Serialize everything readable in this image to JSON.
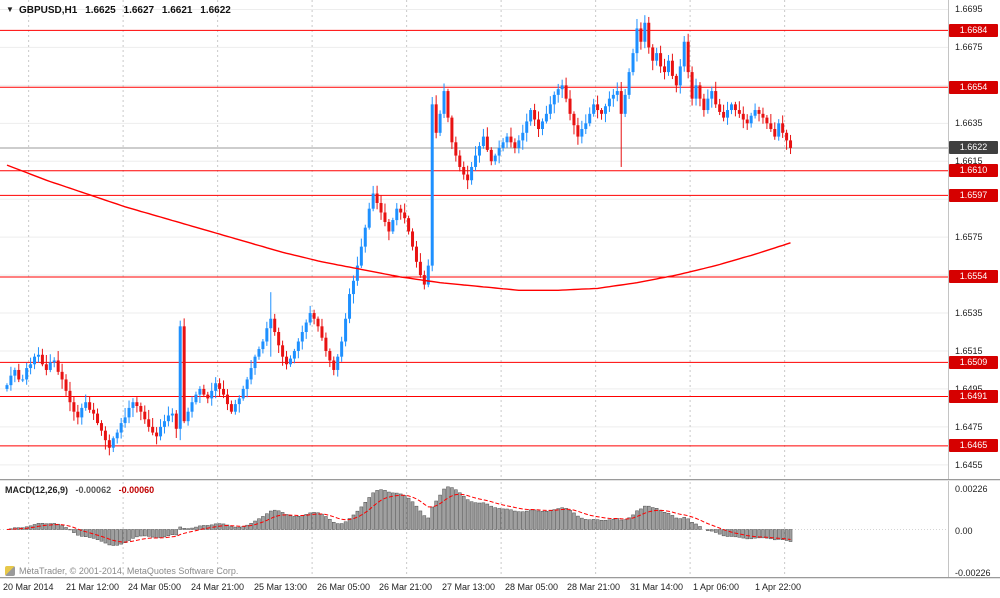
{
  "window": {
    "title_symbol": "GBPUSD,H1",
    "ohlc": {
      "open": "1.6625",
      "high": "1.6627",
      "low": "1.6621",
      "close": "1.6622"
    }
  },
  "icons": {
    "dropdown": "▼"
  },
  "watermark": {
    "text": "MetaTrader, © 2001-2014, MetaQuotes Software Corp."
  },
  "macd_panel": {
    "label": "MACD(12,26,9)",
    "main_value": "-0.00062",
    "signal_value": "-0.00060",
    "axis_labels": [
      "0.00226",
      "0.00",
      "-0.00226"
    ]
  },
  "chart_data": {
    "type": "candlestick",
    "symbol": "GBPUSD",
    "timeframe": "H1",
    "title": "GBPUSD,H1  1.6625 1.6627 1.6621 1.6622",
    "price_axis": {
      "ylim": [
        1.6447,
        1.67
      ],
      "ticks": [
        "1.6695",
        "1.6675",
        "1.6655",
        "1.6635",
        "1.6615",
        "1.6595",
        "1.6575",
        "1.6555",
        "1.6535",
        "1.6515",
        "1.6495",
        "1.6475",
        "1.6455"
      ]
    },
    "time_axis": {
      "labels": [
        "20 Mar 2014",
        "21 Mar 12:00",
        "24 Mar 05:00",
        "24 Mar 21:00",
        "25 Mar 13:00",
        "26 Mar 05:00",
        "26 Mar 21:00",
        "27 Mar 13:00",
        "28 Mar 05:00",
        "28 Mar 21:00",
        "31 Mar 14:00",
        "1 Apr 06:00",
        "1 Apr 22:00"
      ]
    },
    "levels": {
      "horizontal_lines": [
        1.6684,
        1.6654,
        1.661,
        1.6597,
        1.6554,
        1.6509,
        1.6491,
        1.6465
      ],
      "bid": 1.6622
    },
    "candles": {
      "first_open": 1.6495,
      "closes": [
        1.6497,
        1.6502,
        1.6505,
        1.65,
        1.65,
        1.6506,
        1.6508,
        1.6512,
        1.6513,
        1.6508,
        1.6505,
        1.6509,
        1.651,
        1.6504,
        1.65,
        1.6494,
        1.6488,
        1.6483,
        1.648,
        1.6485,
        1.6488,
        1.6484,
        1.6482,
        1.6477,
        1.6473,
        1.6468,
        1.6464,
        1.6469,
        1.6472,
        1.6477,
        1.648,
        1.6485,
        1.6488,
        1.6486,
        1.6483,
        1.6479,
        1.6475,
        1.6472,
        1.647,
        1.6475,
        1.6478,
        1.6481,
        1.6482,
        1.6474,
        1.6528,
        1.6478,
        1.6483,
        1.6488,
        1.6492,
        1.6495,
        1.6492,
        1.649,
        1.6494,
        1.6498,
        1.6495,
        1.6492,
        1.6487,
        1.6483,
        1.6487,
        1.649,
        1.6495,
        1.65,
        1.6506,
        1.6512,
        1.6516,
        1.652,
        1.6527,
        1.6532,
        1.6525,
        1.6518,
        1.6512,
        1.6508,
        1.6511,
        1.6515,
        1.652,
        1.6525,
        1.653,
        1.6535,
        1.6532,
        1.6528,
        1.6522,
        1.6515,
        1.651,
        1.6505,
        1.6512,
        1.652,
        1.6532,
        1.6545,
        1.6552,
        1.656,
        1.657,
        1.658,
        1.659,
        1.6598,
        1.6593,
        1.6588,
        1.6583,
        1.6578,
        1.6584,
        1.659,
        1.6588,
        1.6585,
        1.6578,
        1.657,
        1.6562,
        1.6555,
        1.655,
        1.656,
        1.6645,
        1.663,
        1.664,
        1.6652,
        1.6638,
        1.6625,
        1.6618,
        1.6612,
        1.6608,
        1.6605,
        1.6612,
        1.6618,
        1.6623,
        1.6628,
        1.6621,
        1.6615,
        1.6618,
        1.6622,
        1.6625,
        1.6628,
        1.6625,
        1.6622,
        1.6626,
        1.663,
        1.6636,
        1.6642,
        1.6637,
        1.6632,
        1.6636,
        1.664,
        1.6645,
        1.665,
        1.6653,
        1.6655,
        1.6648,
        1.664,
        1.6634,
        1.6628,
        1.6632,
        1.6635,
        1.664,
        1.6645,
        1.6642,
        1.664,
        1.6644,
        1.6648,
        1.665,
        1.6652,
        1.664,
        1.665,
        1.6662,
        1.6672,
        1.6685,
        1.6678,
        1.6688,
        1.6675,
        1.6668,
        1.6672,
        1.6665,
        1.6662,
        1.6668,
        1.666,
        1.6655,
        1.6665,
        1.6678,
        1.6662,
        1.6648,
        1.6655,
        1.6648,
        1.6642,
        1.6648,
        1.6652,
        1.6645,
        1.6641,
        1.6638,
        1.6642,
        1.6645,
        1.6642,
        1.664,
        1.6637,
        1.6635,
        1.6639,
        1.6642,
        1.664,
        1.6638,
        1.6635,
        1.6632,
        1.6628,
        1.6635,
        1.663,
        1.6626,
        1.6622
      ],
      "wick_overrides": {
        "8": {
          "high": 1.6517
        },
        "26": {
          "low": 1.646
        },
        "44": {
          "high": 1.6531,
          "low": 1.6468
        },
        "67": {
          "high": 1.6546,
          "low": 1.6512
        },
        "87": {
          "high": 1.6548
        },
        "93": {
          "high": 1.6602
        },
        "108": {
          "low": 1.6557
        },
        "111": {
          "high": 1.6656
        },
        "141": {
          "high": 1.6658
        },
        "156": {
          "low": 1.6612
        },
        "160": {
          "high": 1.669
        },
        "162": {
          "high": 1.6692
        },
        "172": {
          "high": 1.6681
        }
      }
    },
    "ma": {
      "description": "long-period moving average",
      "waypoints": [
        [
          0,
          1.6613
        ],
        [
          10,
          1.6605
        ],
        [
          20,
          1.6598
        ],
        [
          30,
          1.6591
        ],
        [
          40,
          1.6585
        ],
        [
          50,
          1.6579
        ],
        [
          60,
          1.6573
        ],
        [
          70,
          1.6567
        ],
        [
          80,
          1.6562
        ],
        [
          90,
          1.6558
        ],
        [
          100,
          1.6554
        ],
        [
          110,
          1.6551
        ],
        [
          120,
          1.6549
        ],
        [
          130,
          1.6547
        ],
        [
          140,
          1.6547
        ],
        [
          150,
          1.6548
        ],
        [
          160,
          1.6551
        ],
        [
          170,
          1.6555
        ],
        [
          180,
          1.656
        ],
        [
          190,
          1.6566
        ],
        [
          199,
          1.6572
        ]
      ]
    },
    "macd": {
      "params": [
        12,
        26,
        9
      ],
      "ylim": [
        -0.0025,
        0.0025
      ],
      "axis_tick_values": [
        0.00226,
        0,
        -0.00226
      ],
      "current_main": -0.00062,
      "current_signal": -0.0006
    },
    "colors": {
      "up_candle": "#1E90FF",
      "down_candle": "#E81212",
      "level_line": "#FF0000",
      "ma_line": "#FF0000",
      "bid_line": "#9B9B9B",
      "grid": "#EDEDED",
      "grid_dash": "#C9C9C9",
      "macd_bar_fill": "#A0A0A0",
      "macd_bar_stroke": "#4D4D4D",
      "macd_signal": "#FF0000",
      "badge_level": "#D60000",
      "badge_bid": "#3F3F3F"
    }
  }
}
